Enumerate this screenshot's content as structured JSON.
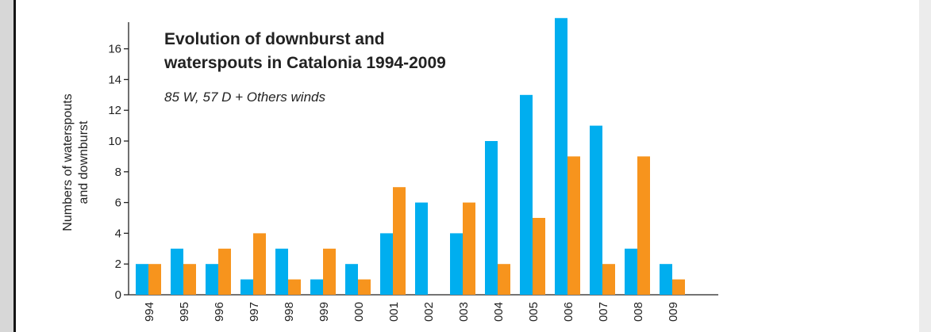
{
  "chart_data": {
    "type": "bar",
    "title_line1": "Evolution of downburst and",
    "title_line2": "waterspouts in Catalonia 1994-2009",
    "subtitle": "85 W, 57 D + Others winds",
    "ylabel_line1": "Numbers of waterspouts",
    "ylabel_line2": "and downburst",
    "xlabel": "",
    "categories": [
      "994",
      "995",
      "996",
      "997",
      "998",
      "999",
      "000",
      "001",
      "002",
      "003",
      "004",
      "005",
      "006",
      "007",
      "008",
      "009"
    ],
    "series": [
      {
        "color": "#00aeef",
        "values": [
          2,
          3,
          2,
          1,
          3,
          1,
          2,
          4,
          6,
          4,
          10,
          13,
          18,
          11,
          3,
          2
        ]
      },
      {
        "color": "#f7941d",
        "values": [
          2,
          2,
          3,
          4,
          1,
          3,
          1,
          7,
          0,
          6,
          2,
          5,
          9,
          2,
          9,
          1
        ]
      }
    ],
    "yticks": [
      0,
      2,
      4,
      6,
      8,
      10,
      12,
      14,
      16
    ],
    "ylim": [
      0,
      18
    ],
    "grid": false,
    "legend": "none"
  }
}
